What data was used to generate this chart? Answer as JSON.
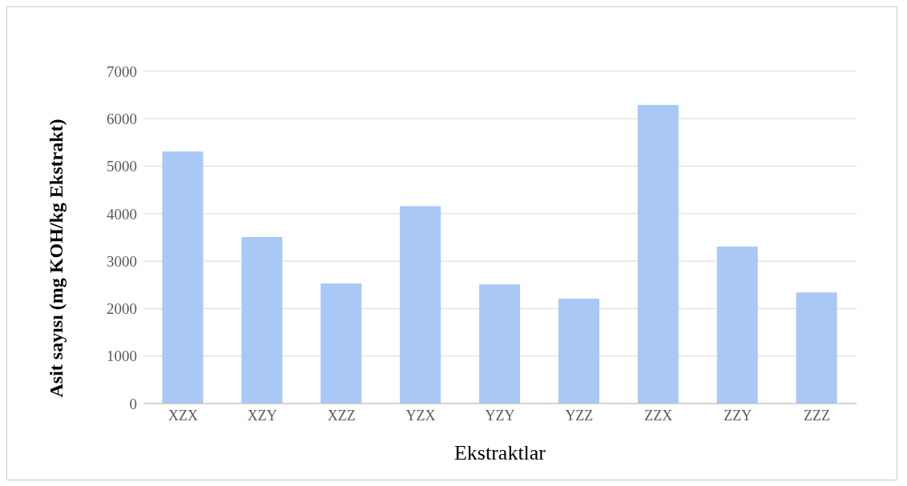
{
  "chart_data": {
    "type": "bar",
    "xlabel": "Ekstraktlar",
    "ylabel": "Asit sayısı (mg KOH/kg Ekstrakt)",
    "categories": [
      "XZX",
      "XZY",
      "XZZ",
      "YZX",
      "YZY",
      "YZZ",
      "ZZX",
      "ZZY",
      "ZZZ"
    ],
    "values": [
      5300,
      3500,
      2520,
      4150,
      2500,
      2200,
      6280,
      3300,
      2330
    ],
    "color": "#a9c8f5",
    "ylim": [
      0,
      7000
    ],
    "yticks": [
      0,
      1000,
      2000,
      3000,
      4000,
      5000,
      6000,
      7000
    ],
    "grid": "y"
  }
}
